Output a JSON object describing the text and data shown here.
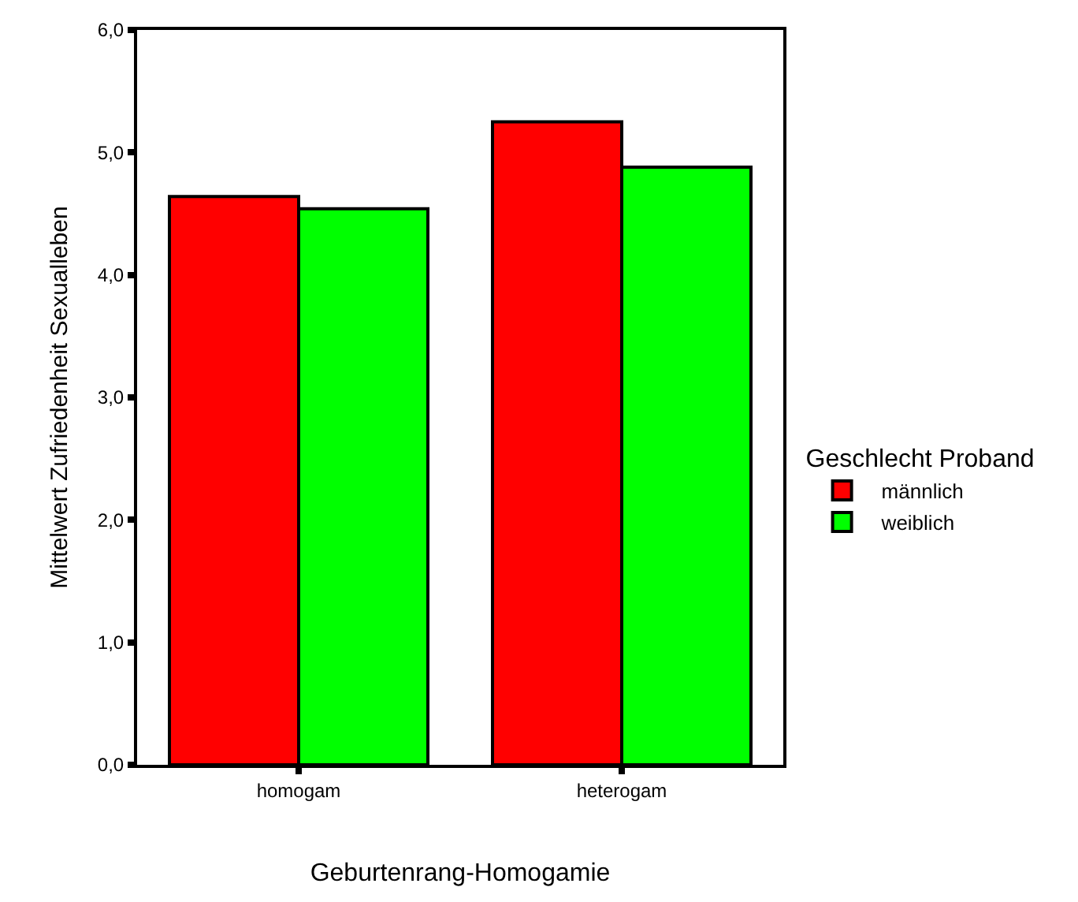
{
  "chart_data": {
    "type": "bar",
    "xlabel": "Geburtenrang-Homogamie",
    "ylabel": "Mittelwert Zufriedenheit Sexualleben",
    "legend_title": "Geschlecht Proband",
    "categories": [
      "homogam",
      "heterogam"
    ],
    "series": [
      {
        "name": "männlich",
        "color": "#ff0000",
        "values": [
          4.64,
          5.25
        ]
      },
      {
        "name": "weiblich",
        "color": "#00ff00",
        "values": [
          4.54,
          4.88
        ]
      }
    ],
    "ylim": [
      0,
      6
    ],
    "yticks": [
      {
        "value": 0,
        "label": "0,0"
      },
      {
        "value": 1,
        "label": "1,0"
      },
      {
        "value": 2,
        "label": "2,0"
      },
      {
        "value": 3,
        "label": "3,0"
      },
      {
        "value": 4,
        "label": "4,0"
      },
      {
        "value": 5,
        "label": "5,0"
      },
      {
        "value": 6,
        "label": "6,0"
      }
    ],
    "legend": "right"
  }
}
